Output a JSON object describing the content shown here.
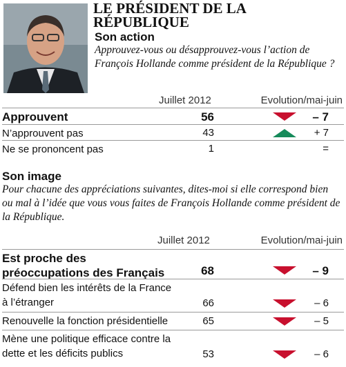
{
  "header": {
    "title": "LE PRÉSIDENT DE LA RÉPUBLIQUE"
  },
  "action": {
    "title": "Son action",
    "question": "Approuvez-vous ou désapprouvez-vous l’action de François Hollande comme président de la République ?",
    "columns": [
      "Juillet 2012",
      "Evolution/mai-juin"
    ],
    "rows": [
      {
        "label": "Approuvent",
        "value": 56,
        "change": "– 7",
        "trend": "down",
        "bold": true
      },
      {
        "label": "N’approuvent pas",
        "value": 43,
        "change": "+ 7",
        "trend": "up",
        "bold": false
      },
      {
        "label": "Ne se prononcent pas",
        "value": 1,
        "change": "=",
        "trend": null,
        "bold": false
      }
    ]
  },
  "image": {
    "title": "Son image",
    "question": "Pour chacune des appréciations suivantes, dites-moi si elle correspond bien ou mal à l’idée que vous vous faites de François Hollande comme président de la République.",
    "columns": [
      "Juillet 2012",
      "Evolution/mai-juin"
    ],
    "rows": [
      {
        "label": "Est proche des préoccupations des Français",
        "value": 68,
        "change": "– 9",
        "trend": "down",
        "bold": true
      },
      {
        "label": "Défend bien les intérêts de la France à l’étranger",
        "value": 66,
        "change": "– 6",
        "trend": "down",
        "bold": false
      },
      {
        "label": "Renouvelle la fonction présidentielle",
        "value": 65,
        "change": "– 5",
        "trend": "down",
        "bold": false
      },
      {
        "label": "Mène une politique efficace contre la dette et les déficits publics",
        "value": 53,
        "change": "– 6",
        "trend": "down",
        "bold": false
      }
    ]
  }
}
